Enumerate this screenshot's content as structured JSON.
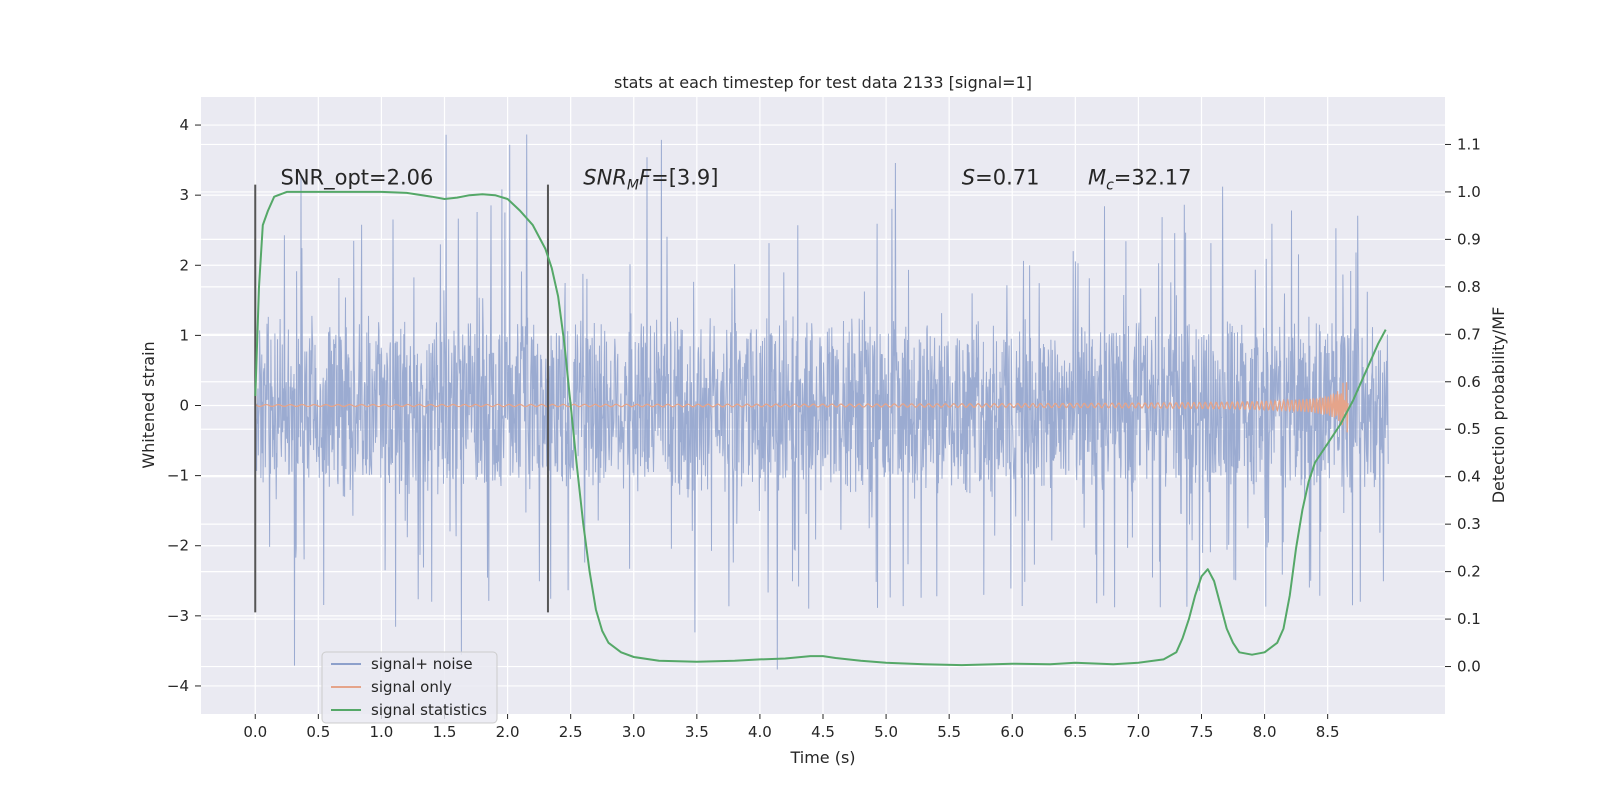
{
  "chart_data": {
    "type": "line",
    "title": "stats at each timestep for test data 2133 [signal=1]",
    "xlabel": "Time (s)",
    "ylabel": "Whitened strain",
    "y2label": "Detection probability/MF",
    "xlim": [
      -0.43,
      9.43
    ],
    "ylim": [
      -4.4,
      4.4
    ],
    "y2lim": [
      -0.1,
      1.2
    ],
    "x_ticks": [
      "0.0",
      "0.5",
      "1.0",
      "1.5",
      "2.0",
      "2.5",
      "3.0",
      "3.5",
      "4.0",
      "4.5",
      "5.0",
      "5.5",
      "6.0",
      "6.5",
      "7.0",
      "7.5",
      "8.0",
      "8.5"
    ],
    "y_ticks": [
      "4",
      "3",
      "2",
      "1",
      "0",
      "−1",
      "−2",
      "−3",
      "−4"
    ],
    "y2_ticks": [
      "1.1",
      "1.0",
      "0.9",
      "0.8",
      "0.7",
      "0.6",
      "0.5",
      "0.4",
      "0.3",
      "0.2",
      "0.1",
      "0.0"
    ],
    "grid": true,
    "legend_position": "lower-left",
    "series": [
      {
        "name": "signal+ noise",
        "color": "#8da0cb",
        "axis": "left",
        "description_values": {
          "x_range": [
            0.0,
            8.98
          ],
          "core_band": [
            -1.1,
            1.35
          ],
          "peak_max": 4.0,
          "peak_min": -3.8
        }
      },
      {
        "name": "signal only",
        "color": "#e5a48a",
        "axis": "left",
        "chirp": {
          "start_time": 0.0,
          "merger_time": 8.66,
          "peak_amplitude": 0.5
        }
      },
      {
        "name": "signal statistics",
        "color": "#55a868",
        "axis": "right",
        "x": [
          0.0,
          0.03,
          0.06,
          0.1,
          0.15,
          0.25,
          0.4,
          0.6,
          0.8,
          1.0,
          1.2,
          1.4,
          1.5,
          1.6,
          1.7,
          1.8,
          1.9,
          2.0,
          2.1,
          2.2,
          2.3,
          2.35,
          2.4,
          2.45,
          2.5,
          2.55,
          2.6,
          2.65,
          2.7,
          2.75,
          2.8,
          2.9,
          3.0,
          3.2,
          3.5,
          3.8,
          4.0,
          4.2,
          4.4,
          4.5,
          4.6,
          4.8,
          5.0,
          5.3,
          5.6,
          6.0,
          6.3,
          6.5,
          6.8,
          7.0,
          7.2,
          7.3,
          7.35,
          7.4,
          7.45,
          7.5,
          7.55,
          7.6,
          7.65,
          7.7,
          7.75,
          7.8,
          7.9,
          8.0,
          8.1,
          8.15,
          8.2,
          8.25,
          8.3,
          8.35,
          8.4,
          8.5,
          8.6,
          8.7,
          8.8,
          8.9,
          8.96
        ],
        "values": [
          0.57,
          0.8,
          0.93,
          0.96,
          0.99,
          1.0,
          1.0,
          1.0,
          1.0,
          1.0,
          0.998,
          0.99,
          0.985,
          0.988,
          0.993,
          0.995,
          0.993,
          0.985,
          0.96,
          0.93,
          0.88,
          0.84,
          0.78,
          0.68,
          0.55,
          0.42,
          0.3,
          0.2,
          0.12,
          0.075,
          0.05,
          0.03,
          0.02,
          0.012,
          0.01,
          0.012,
          0.015,
          0.017,
          0.022,
          0.022,
          0.018,
          0.012,
          0.008,
          0.005,
          0.003,
          0.006,
          0.005,
          0.008,
          0.005,
          0.008,
          0.015,
          0.03,
          0.06,
          0.1,
          0.15,
          0.19,
          0.205,
          0.18,
          0.13,
          0.08,
          0.05,
          0.03,
          0.025,
          0.03,
          0.05,
          0.08,
          0.15,
          0.25,
          0.33,
          0.39,
          0.43,
          0.47,
          0.51,
          0.56,
          0.62,
          0.68,
          0.71
        ]
      }
    ],
    "vertical_markers": [
      {
        "x": 0.0,
        "y_range": [
          -2.95,
          3.15
        ],
        "color": "#555555"
      },
      {
        "x": 2.32,
        "y_range": [
          -2.95,
          3.15
        ],
        "color": "#555555"
      }
    ],
    "annotations": [
      {
        "x": 0.2,
        "y": 3.15,
        "text": "SNR_opt=2.06"
      },
      {
        "x": 2.6,
        "y": 3.15,
        "parts": [
          "SNR",
          "MF",
          "=[3.9]"
        ]
      },
      {
        "x": 5.6,
        "y": 3.15,
        "parts": [
          "S",
          "=0.71"
        ]
      },
      {
        "x": 6.6,
        "y": 3.15,
        "parts": [
          "M",
          "c",
          "=32.17"
        ]
      }
    ]
  }
}
